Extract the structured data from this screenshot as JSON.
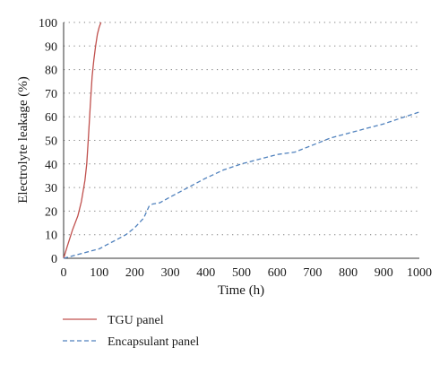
{
  "chart_data": {
    "type": "line",
    "title": "",
    "xlabel": "Time (h)",
    "ylabel": "Electrolyte leakage (%)",
    "xlim": [
      0,
      1000
    ],
    "ylim": [
      0,
      100
    ],
    "x_ticks": [
      0,
      100,
      200,
      300,
      400,
      500,
      600,
      700,
      800,
      900,
      1000
    ],
    "y_ticks": [
      0,
      10,
      20,
      30,
      40,
      50,
      60,
      70,
      80,
      90,
      100
    ],
    "grid": "horizontal dotted",
    "legend_position": "bottom-left",
    "series": [
      {
        "name": "TGU panel",
        "color": "#c0504d",
        "line_style": "solid",
        "points": [
          [
            0,
            0
          ],
          [
            10,
            5
          ],
          [
            25,
            12
          ],
          [
            40,
            18
          ],
          [
            50,
            24
          ],
          [
            60,
            33
          ],
          [
            65,
            40
          ],
          [
            70,
            52
          ],
          [
            75,
            65
          ],
          [
            80,
            77
          ],
          [
            85,
            84
          ],
          [
            90,
            90
          ],
          [
            95,
            95
          ],
          [
            100,
            98
          ],
          [
            105,
            100
          ]
        ]
      },
      {
        "name": "Encapsulant panel",
        "color": "#4f81bd",
        "line_style": "dashed",
        "points": [
          [
            0,
            0
          ],
          [
            25,
            1
          ],
          [
            50,
            2
          ],
          [
            75,
            3
          ],
          [
            100,
            4
          ],
          [
            125,
            6
          ],
          [
            150,
            8
          ],
          [
            175,
            10
          ],
          [
            200,
            13
          ],
          [
            225,
            17
          ],
          [
            240,
            22
          ],
          [
            250,
            23
          ],
          [
            270,
            23.5
          ],
          [
            300,
            26
          ],
          [
            350,
            30
          ],
          [
            400,
            34
          ],
          [
            450,
            37.5
          ],
          [
            500,
            40
          ],
          [
            550,
            42
          ],
          [
            600,
            44
          ],
          [
            650,
            45
          ],
          [
            700,
            48
          ],
          [
            750,
            51
          ],
          [
            800,
            53
          ],
          [
            850,
            55
          ],
          [
            900,
            57
          ],
          [
            950,
            59.5
          ],
          [
            1000,
            62
          ]
        ]
      }
    ]
  }
}
